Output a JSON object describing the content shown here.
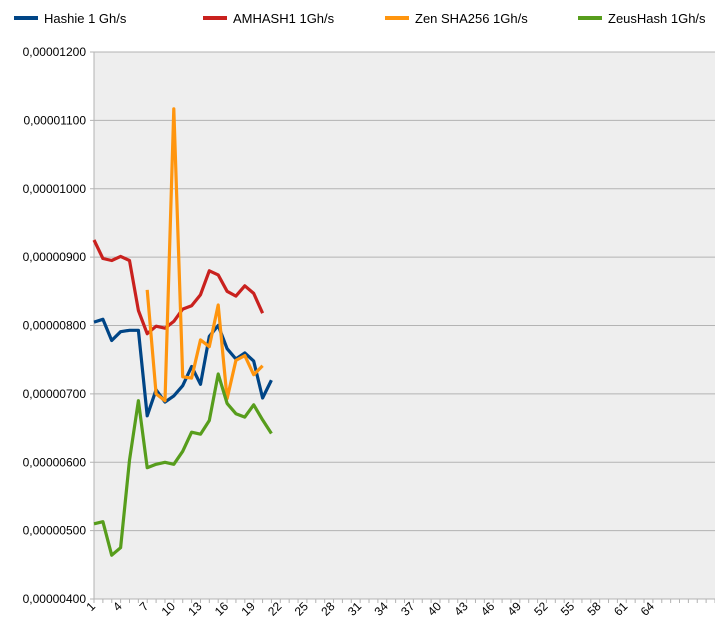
{
  "chart_data": {
    "type": "line",
    "title": "",
    "xlabel": "",
    "ylabel": "",
    "x": [
      1,
      2,
      3,
      4,
      5,
      6,
      7,
      8,
      9,
      10,
      11,
      12,
      13,
      14,
      15,
      16,
      17,
      18,
      19,
      20,
      21
    ],
    "x_ticks": [
      "1",
      "4",
      "7",
      "10",
      "13",
      "16",
      "19",
      "22",
      "25",
      "28",
      "31",
      "34",
      "37",
      "40",
      "43",
      "46",
      "49",
      "52",
      "55",
      "58",
      "61",
      "64"
    ],
    "x_range": [
      1,
      70
    ],
    "ylim": [
      4e-06,
      1.2e-05
    ],
    "y_ticks": [
      4e-06,
      5e-06,
      6e-06,
      7e-06,
      8e-06,
      9e-06,
      1e-05,
      1.1e-05,
      1.2e-05
    ],
    "y_tick_labels": [
      "0,00000400",
      "0,00000500",
      "0,00000600",
      "0,00000700",
      "0,00000800",
      "0,00000900",
      "0,00001000",
      "0,00001100",
      "0,00001200"
    ],
    "grid": true,
    "legend_position": "top",
    "series": [
      {
        "name": "Hashie 1 Gh/s",
        "color": "#004586",
        "values": [
          8.05e-06,
          8.09e-06,
          7.78e-06,
          7.91e-06,
          7.93e-06,
          7.93e-06,
          6.68e-06,
          7.06e-06,
          6.88e-06,
          6.97e-06,
          7.12e-06,
          7.4e-06,
          7.14e-06,
          7.84e-06,
          8e-06,
          7.66e-06,
          7.51e-06,
          7.6e-06,
          7.48e-06,
          6.94e-06,
          7.2e-06
        ]
      },
      {
        "name": "AMHASH1 1Gh/s",
        "color": "#c9211e",
        "values": [
          9.25e-06,
          8.98e-06,
          8.95e-06,
          9.01e-06,
          8.95e-06,
          8.22e-06,
          7.88e-06,
          7.99e-06,
          7.96e-06,
          8.06e-06,
          8.24e-06,
          8.29e-06,
          8.45e-06,
          8.8e-06,
          8.74e-06,
          8.5e-06,
          8.43e-06,
          8.58e-06,
          8.47e-06,
          8.18e-06,
          null
        ]
      },
      {
        "name": "Zen SHA256 1Gh/s",
        "color": "#ff950e",
        "values": [
          null,
          null,
          null,
          null,
          null,
          null,
          8.52e-06,
          7e-06,
          6.9e-06,
          1.117e-05,
          7.25e-06,
          7.23e-06,
          7.79e-06,
          7.69e-06,
          8.3e-06,
          6.93e-06,
          7.49e-06,
          7.56e-06,
          7.28e-06,
          7.41e-06,
          null
        ]
      },
      {
        "name": "ZeusHash 1Gh/s",
        "color": "#579d1c",
        "values": [
          5.1e-06,
          5.13e-06,
          4.64e-06,
          4.75e-06,
          6.03e-06,
          6.9e-06,
          5.92e-06,
          5.97e-06,
          6e-06,
          5.97e-06,
          6.16e-06,
          6.44e-06,
          6.41e-06,
          6.61e-06,
          7.29e-06,
          6.86e-06,
          6.71e-06,
          6.66e-06,
          6.84e-06,
          6.62e-06,
          6.42e-06
        ]
      }
    ]
  }
}
